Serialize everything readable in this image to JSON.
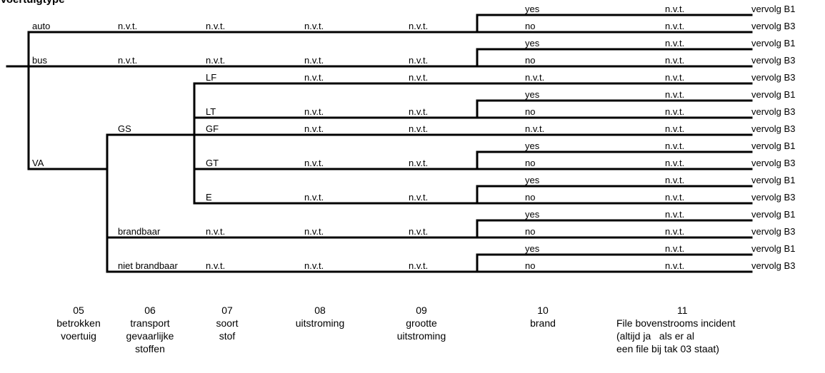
{
  "title": "Voertuigtype",
  "line_color": "#000000",
  "rows": [
    {
      "c05": "",
      "c06": "",
      "c07": "",
      "c08": "",
      "c09": "",
      "c10": "yes",
      "c11": "n.v.t.",
      "result": "vervolg B1"
    },
    {
      "c05": "auto",
      "c06": "n.v.t.",
      "c07": "n.v.t.",
      "c08": "n.v.t.",
      "c09": "n.v.t.",
      "c10": "no",
      "c11": "n.v.t.",
      "result": "vervolg B3"
    },
    {
      "c05": "",
      "c06": "",
      "c07": "",
      "c08": "",
      "c09": "",
      "c10": "yes",
      "c11": "n.v.t.",
      "result": "vervolg B1"
    },
    {
      "c05": "bus",
      "c06": "n.v.t.",
      "c07": "n.v.t.",
      "c08": "n.v.t.",
      "c09": "n.v.t.",
      "c10": "no",
      "c11": "n.v.t.",
      "result": "vervolg B3"
    },
    {
      "c05": "",
      "c06": "",
      "c07": "LF",
      "c08": "n.v.t.",
      "c09": "n.v.t.",
      "c10": "n.v.t.",
      "c11": "n.v.t.",
      "result": "vervolg B3"
    },
    {
      "c05": "",
      "c06": "",
      "c07": "",
      "c08": "",
      "c09": "",
      "c10": "yes",
      "c11": "n.v.t.",
      "result": "vervolg B1"
    },
    {
      "c05": "",
      "c06": "",
      "c07": "LT",
      "c08": "n.v.t.",
      "c09": "n.v.t.",
      "c10": "no",
      "c11": "n.v.t.",
      "result": "vervolg B3"
    },
    {
      "c05": "",
      "c06": "GS",
      "c07": "GF",
      "c08": "n.v.t.",
      "c09": "n.v.t.",
      "c10": "n.v.t.",
      "c11": "n.v.t.",
      "result": "vervolg B3"
    },
    {
      "c05": "",
      "c06": "",
      "c07": "",
      "c08": "",
      "c09": "",
      "c10": "yes",
      "c11": "n.v.t.",
      "result": "vervolg B1"
    },
    {
      "c05": "VA",
      "c06": "",
      "c07": "GT",
      "c08": "n.v.t.",
      "c09": "n.v.t.",
      "c10": "no",
      "c11": "n.v.t.",
      "result": "vervolg B3"
    },
    {
      "c05": "",
      "c06": "",
      "c07": "",
      "c08": "",
      "c09": "",
      "c10": "yes",
      "c11": "n.v.t.",
      "result": "vervolg B1"
    },
    {
      "c05": "",
      "c06": "",
      "c07": "E",
      "c08": "n.v.t.",
      "c09": "n.v.t.",
      "c10": "no",
      "c11": "n.v.t.",
      "result": "vervolg B3"
    },
    {
      "c05": "",
      "c06": "",
      "c07": "",
      "c08": "",
      "c09": "",
      "c10": "yes",
      "c11": "n.v.t.",
      "result": "vervolg B1"
    },
    {
      "c05": "",
      "c06": "brandbaar",
      "c07": "n.v.t.",
      "c08": "n.v.t.",
      "c09": "n.v.t.",
      "c10": "no",
      "c11": "n.v.t.",
      "result": "vervolg B3"
    },
    {
      "c05": "",
      "c06": "",
      "c07": "",
      "c08": "",
      "c09": "",
      "c10": "yes",
      "c11": "n.v.t.",
      "result": "vervolg B1"
    },
    {
      "c05": "",
      "c06": "niet brandbaar",
      "c07": "n.v.t.",
      "c08": "n.v.t.",
      "c09": "n.v.t.",
      "c10": "no",
      "c11": "n.v.t.",
      "result": "vervolg B3"
    }
  ],
  "columns": {
    "c05": {
      "number": "05",
      "label": [
        "betrokken",
        "voertuig"
      ]
    },
    "c06": {
      "number": "06",
      "label": [
        "transport",
        "gevaarlijke",
        "stoffen"
      ]
    },
    "c07": {
      "number": "07",
      "label": [
        "soort",
        "stof"
      ]
    },
    "c08": {
      "number": "08",
      "label": [
        "uitstroming"
      ]
    },
    "c09": {
      "number": "09",
      "label": [
        "grootte",
        "uitstroming"
      ]
    },
    "c10": {
      "number": "10",
      "label": [
        "brand"
      ]
    },
    "c11": {
      "number": "11",
      "label": [
        "File bovenstrooms incident",
        "(altijd ja   als er al",
        "een file bij tak 03 staat)"
      ]
    }
  }
}
